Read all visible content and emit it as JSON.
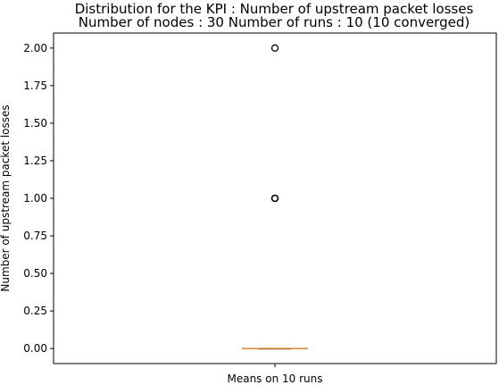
{
  "chart_data": {
    "type": "box",
    "title": "Distribution for the KPI : Number of upstream packet losses",
    "subtitle": "Number of nodes : 30   Number of runs : 10 (10 converged)",
    "xlabel": "",
    "ylabel": "Number of upstream packet losses",
    "categories": [
      "Means on 10 runs"
    ],
    "ylim": [
      -0.1,
      2.1
    ],
    "yticks": [
      0.0,
      0.25,
      0.5,
      0.75,
      1.0,
      1.25,
      1.5,
      1.75,
      2.0
    ],
    "ytick_labels": [
      "0.00",
      "0.25",
      "0.50",
      "0.75",
      "1.00",
      "1.25",
      "1.50",
      "1.75",
      "2.00"
    ],
    "box": {
      "q1": 0,
      "median": 0,
      "q3": 0,
      "whisker_low": 0,
      "whisker_high": 0,
      "outliers": [
        1,
        1,
        1,
        1,
        2
      ]
    },
    "grid": false,
    "colors": {
      "box": "#000000",
      "median": "#e08a3c",
      "outlier": "#000000"
    }
  }
}
